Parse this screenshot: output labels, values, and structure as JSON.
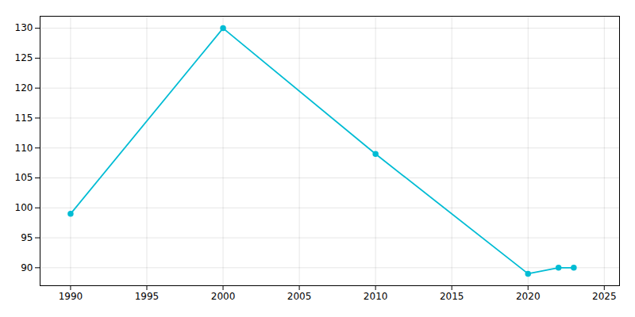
{
  "chart_data": {
    "type": "line",
    "x": [
      1990,
      2000,
      2010,
      2020,
      2022,
      2023
    ],
    "values": [
      99,
      130,
      109,
      89,
      90,
      90
    ],
    "color": "#00bcd4",
    "marker": "circle",
    "xlim": [
      1988,
      2026
    ],
    "ylim": [
      87,
      132
    ],
    "xticks": [
      1990,
      1995,
      2000,
      2005,
      2010,
      2015,
      2020,
      2025
    ],
    "yticks": [
      90,
      95,
      100,
      105,
      110,
      115,
      120,
      125,
      130
    ],
    "grid": true
  }
}
